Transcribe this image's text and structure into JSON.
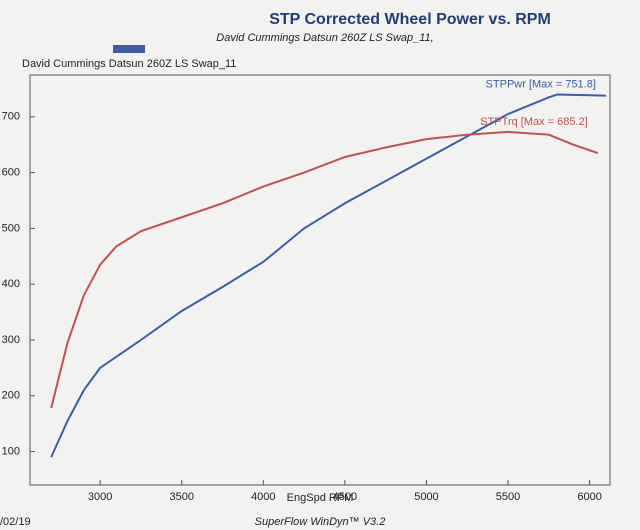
{
  "chart_data": {
    "type": "line",
    "title": "STP Corrected Wheel Power vs. RPM",
    "subtitle": "David Cummings Datsun 260Z LS Swap_11,",
    "x_label": "EngSpd RPM",
    "footer": "SuperFlow WinDyn™ V3.2",
    "date": "/02/19",
    "xlim": [
      2570,
      6125
    ],
    "xticks": [
      3000,
      3500,
      4000,
      4500,
      5000,
      5500,
      6000
    ],
    "ylim": [
      40,
      775
    ],
    "yticks": [
      100,
      200,
      300,
      400,
      500,
      600,
      700
    ],
    "legend_location": "upper left",
    "series": [
      {
        "name": "David Cummings Datsun 260Z LS Swap_11",
        "label": "STPPwr [Max = 751.8]",
        "color": "#3b5ea6",
        "x": [
          2700,
          2800,
          2900,
          3000,
          3250,
          3500,
          3750,
          4000,
          4250,
          4500,
          4750,
          5000,
          5250,
          5500,
          5750,
          5800,
          6100
        ],
        "values": [
          90,
          155,
          210,
          250,
          300,
          352,
          395,
          440,
          500,
          545,
          585,
          625,
          665,
          705,
          735,
          740,
          738
        ]
      },
      {
        "label": "STPTrq [Max = 685.2]",
        "color": "#c2504e",
        "x": [
          2700,
          2800,
          2900,
          3000,
          3100,
          3250,
          3500,
          3750,
          4000,
          4250,
          4500,
          4750,
          5000,
          5250,
          5500,
          5750,
          5900,
          6050
        ],
        "values": [
          178,
          295,
          380,
          435,
          468,
          495,
          520,
          545,
          575,
          600,
          628,
          645,
          660,
          668,
          673,
          668,
          650,
          635
        ]
      }
    ]
  }
}
